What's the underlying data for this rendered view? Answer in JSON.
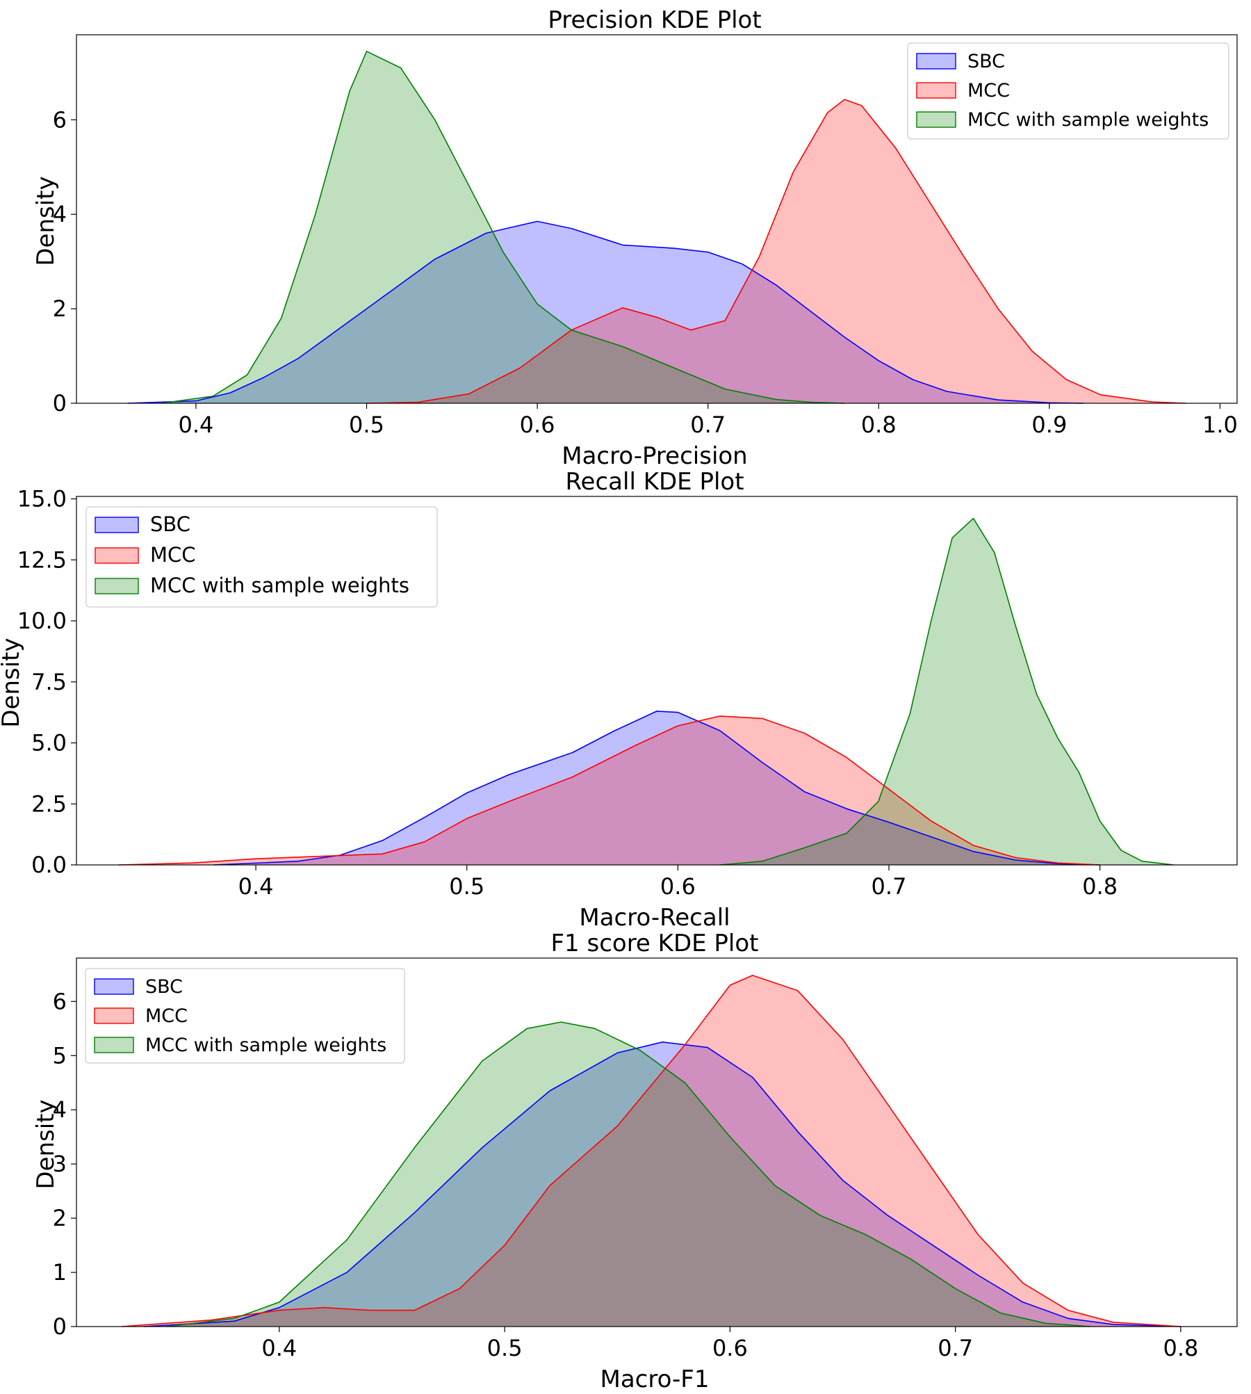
{
  "chart_data": [
    {
      "type": "area",
      "title": "Precision KDE Plot",
      "xlabel": "Macro-Precision",
      "ylabel": "Density",
      "xlim": [
        0.33,
        1.01
      ],
      "ylim": [
        0,
        7.8
      ],
      "xticks": [
        0.4,
        0.5,
        0.6,
        0.7,
        0.8,
        0.9,
        1.0
      ],
      "xtick_labels": [
        "0.4",
        "0.5",
        "0.6",
        "0.7",
        "0.8",
        "0.9",
        "1.0"
      ],
      "yticks": [
        0,
        2,
        4,
        6
      ],
      "ytick_labels": [
        "0",
        "2",
        "4",
        "6"
      ],
      "legend_position": "top-right",
      "series": [
        {
          "name": "SBC",
          "color": "#0000ff",
          "fill": "#bcbcff",
          "x": [
            0.36,
            0.4,
            0.42,
            0.44,
            0.46,
            0.5,
            0.54,
            0.57,
            0.6,
            0.62,
            0.65,
            0.68,
            0.7,
            0.72,
            0.74,
            0.76,
            0.78,
            0.8,
            0.82,
            0.84,
            0.87,
            0.9,
            0.92
          ],
          "y": [
            0,
            0.05,
            0.22,
            0.55,
            0.95,
            2.0,
            3.05,
            3.6,
            3.85,
            3.7,
            3.35,
            3.28,
            3.2,
            2.95,
            2.5,
            1.95,
            1.4,
            0.9,
            0.5,
            0.25,
            0.07,
            0.01,
            0
          ]
        },
        {
          "name": "MCC",
          "color": "#ff0000",
          "fill": "#ffbcbc",
          "x": [
            0.5,
            0.53,
            0.56,
            0.59,
            0.62,
            0.65,
            0.67,
            0.69,
            0.71,
            0.73,
            0.75,
            0.77,
            0.78,
            0.79,
            0.81,
            0.83,
            0.85,
            0.87,
            0.89,
            0.91,
            0.93,
            0.96,
            0.98
          ],
          "y": [
            0,
            0.02,
            0.2,
            0.75,
            1.55,
            2.02,
            1.82,
            1.55,
            1.75,
            3.1,
            4.9,
            6.15,
            6.43,
            6.3,
            5.4,
            4.25,
            3.1,
            2.0,
            1.1,
            0.5,
            0.18,
            0.03,
            0
          ]
        },
        {
          "name": "MCC with sample weights",
          "color": "#008000",
          "fill": "#c0dfc0",
          "x": [
            0.38,
            0.41,
            0.43,
            0.45,
            0.47,
            0.49,
            0.5,
            0.52,
            0.54,
            0.56,
            0.58,
            0.6,
            0.62,
            0.65,
            0.68,
            0.71,
            0.74,
            0.76,
            0.78
          ],
          "y": [
            0,
            0.15,
            0.6,
            1.8,
            4.0,
            6.6,
            7.45,
            7.1,
            6.0,
            4.6,
            3.2,
            2.1,
            1.55,
            1.2,
            0.75,
            0.3,
            0.08,
            0.02,
            0
          ]
        }
      ]
    },
    {
      "type": "area",
      "title": "Recall KDE Plot",
      "xlabel": "Macro-Recall",
      "ylabel": "Density",
      "xlim": [
        0.315,
        0.865
      ],
      "ylim": [
        0,
        15.1
      ],
      "xticks": [
        0.4,
        0.5,
        0.6,
        0.7,
        0.8
      ],
      "xtick_labels": [
        "0.4",
        "0.5",
        "0.6",
        "0.7",
        "0.8"
      ],
      "yticks": [
        0,
        2.5,
        5.0,
        7.5,
        10.0,
        12.5,
        15.0
      ],
      "ytick_labels": [
        "0.0",
        "2.5",
        "5.0",
        "7.5",
        "10.0",
        "12.5",
        "15.0"
      ],
      "legend_position": "top-left",
      "series": [
        {
          "name": "SBC",
          "color": "#0000ff",
          "fill": "#bcbcff",
          "x": [
            0.38,
            0.42,
            0.44,
            0.46,
            0.48,
            0.5,
            0.52,
            0.55,
            0.57,
            0.59,
            0.6,
            0.62,
            0.64,
            0.66,
            0.68,
            0.7,
            0.72,
            0.74,
            0.76,
            0.78,
            0.8
          ],
          "y": [
            0,
            0.15,
            0.4,
            1.0,
            1.95,
            2.95,
            3.7,
            4.6,
            5.5,
            6.3,
            6.25,
            5.5,
            4.2,
            3.0,
            2.3,
            1.75,
            1.15,
            0.55,
            0.2,
            0.05,
            0
          ]
        },
        {
          "name": "MCC",
          "color": "#ff0000",
          "fill": "#ffbcbc",
          "x": [
            0.335,
            0.37,
            0.4,
            0.43,
            0.46,
            0.48,
            0.5,
            0.52,
            0.55,
            0.58,
            0.6,
            0.62,
            0.64,
            0.66,
            0.68,
            0.7,
            0.72,
            0.74,
            0.76,
            0.78,
            0.8
          ],
          "y": [
            0,
            0.08,
            0.25,
            0.35,
            0.45,
            0.95,
            1.9,
            2.6,
            3.6,
            4.9,
            5.7,
            6.1,
            6.0,
            5.4,
            4.4,
            3.1,
            1.8,
            0.8,
            0.3,
            0.08,
            0
          ]
        },
        {
          "name": "MCC with sample weights",
          "color": "#008000",
          "fill": "#c0dfc0",
          "x": [
            0.62,
            0.64,
            0.66,
            0.68,
            0.695,
            0.71,
            0.72,
            0.73,
            0.74,
            0.75,
            0.76,
            0.77,
            0.78,
            0.79,
            0.8,
            0.81,
            0.82,
            0.835
          ],
          "y": [
            0,
            0.15,
            0.7,
            1.3,
            2.6,
            6.2,
            10.0,
            13.4,
            14.2,
            12.8,
            9.8,
            7.0,
            5.2,
            3.8,
            1.8,
            0.6,
            0.15,
            0
          ]
        }
      ]
    },
    {
      "type": "area",
      "title": "F1 score KDE Plot",
      "xlabel": "Macro-F1",
      "ylabel": "Density",
      "xlim": [
        0.31,
        0.825
      ],
      "ylim": [
        0,
        6.8
      ],
      "xticks": [
        0.4,
        0.5,
        0.6,
        0.7,
        0.8
      ],
      "xtick_labels": [
        "0.4",
        "0.5",
        "0.6",
        "0.7",
        "0.8"
      ],
      "yticks": [
        0,
        1,
        2,
        3,
        4,
        5,
        6
      ],
      "ytick_labels": [
        "0",
        "1",
        "2",
        "3",
        "4",
        "5",
        "6"
      ],
      "legend_position": "top-left",
      "series": [
        {
          "name": "SBC",
          "color": "#0000ff",
          "fill": "#bcbcff",
          "x": [
            0.34,
            0.38,
            0.4,
            0.43,
            0.46,
            0.49,
            0.52,
            0.55,
            0.57,
            0.59,
            0.61,
            0.63,
            0.65,
            0.67,
            0.69,
            0.71,
            0.73,
            0.75,
            0.77,
            0.8
          ],
          "y": [
            0,
            0.1,
            0.35,
            1.0,
            2.1,
            3.3,
            4.35,
            5.05,
            5.25,
            5.15,
            4.6,
            3.6,
            2.7,
            2.05,
            1.5,
            0.95,
            0.45,
            0.15,
            0.04,
            0
          ]
        },
        {
          "name": "MCC",
          "color": "#ff0000",
          "fill": "#ffbcbc",
          "x": [
            0.33,
            0.37,
            0.4,
            0.42,
            0.44,
            0.46,
            0.48,
            0.5,
            0.52,
            0.55,
            0.58,
            0.6,
            0.61,
            0.63,
            0.65,
            0.67,
            0.69,
            0.71,
            0.73,
            0.75,
            0.77,
            0.8
          ],
          "y": [
            0,
            0.12,
            0.3,
            0.35,
            0.3,
            0.3,
            0.7,
            1.5,
            2.6,
            3.7,
            5.2,
            6.3,
            6.48,
            6.2,
            5.3,
            4.1,
            2.9,
            1.7,
            0.8,
            0.3,
            0.08,
            0
          ]
        },
        {
          "name": "MCC with sample weights",
          "color": "#008000",
          "fill": "#c0dfc0",
          "x": [
            0.35,
            0.38,
            0.4,
            0.43,
            0.46,
            0.49,
            0.51,
            0.525,
            0.54,
            0.56,
            0.58,
            0.6,
            0.62,
            0.64,
            0.66,
            0.68,
            0.7,
            0.72,
            0.74,
            0.76
          ],
          "y": [
            0,
            0.15,
            0.45,
            1.6,
            3.3,
            4.9,
            5.5,
            5.62,
            5.5,
            5.1,
            4.5,
            3.5,
            2.6,
            2.05,
            1.7,
            1.25,
            0.7,
            0.25,
            0.06,
            0
          ]
        }
      ]
    }
  ]
}
